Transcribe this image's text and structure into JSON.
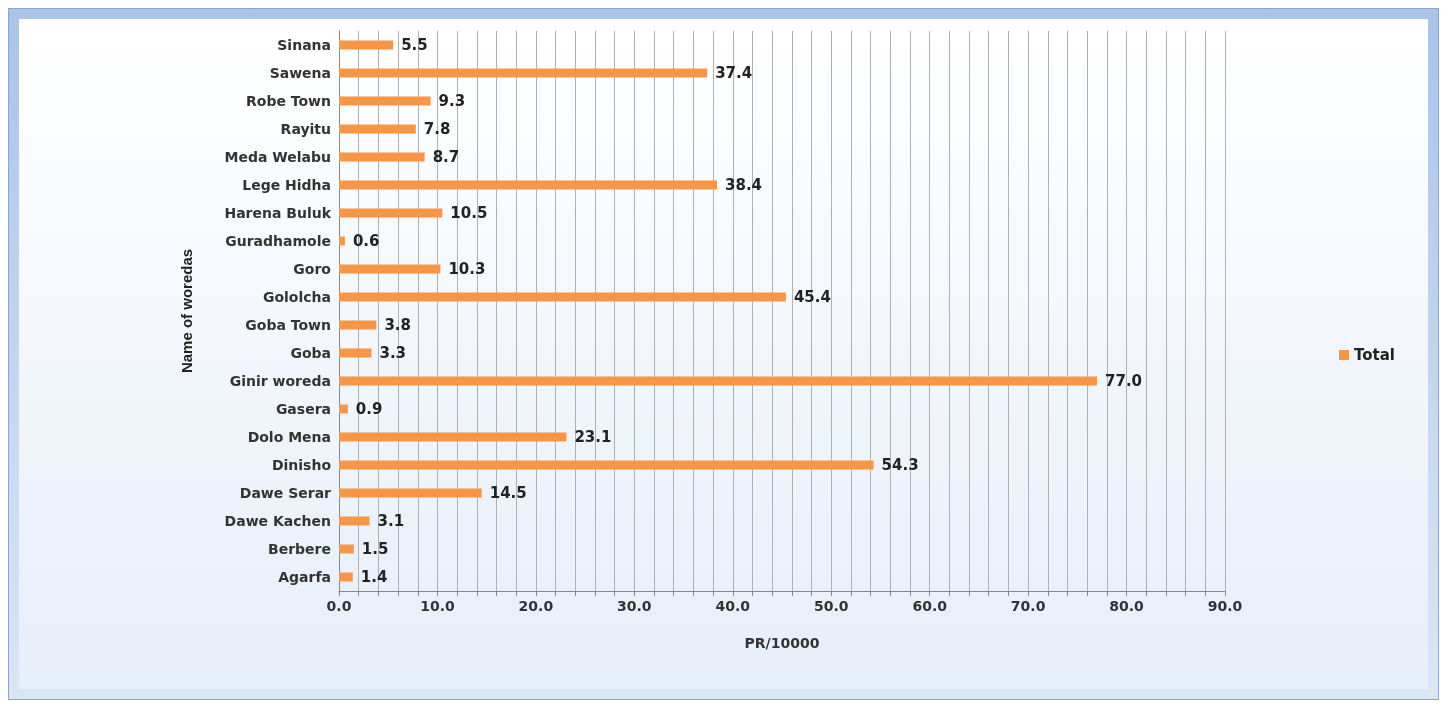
{
  "chart_data": {
    "type": "bar",
    "orientation": "horizontal",
    "xlabel": "PR/10000",
    "ylabel": "Name of woredas",
    "categories": [
      "Sinana",
      "Sawena",
      "Robe Town",
      "Rayitu",
      "Meda Welabu",
      "Lege Hidha",
      "Harena Buluk",
      "Guradhamole",
      "Goro",
      "Gololcha",
      "Goba Town",
      "Goba",
      "Ginir woreda",
      "Gasera",
      "Dolo Mena",
      "Dinisho",
      "Dawe Serar",
      "Dawe Kachen",
      "Berbere",
      "Agarfa"
    ],
    "series": [
      {
        "name": "Total",
        "color": "#f79646",
        "values": [
          5.5,
          37.4,
          9.3,
          7.8,
          8.7,
          38.4,
          10.5,
          0.6,
          10.3,
          45.4,
          3.8,
          3.3,
          77.0,
          0.9,
          23.1,
          54.3,
          14.5,
          3.1,
          1.5,
          1.4
        ],
        "value_labels": [
          "5.5",
          "37.4",
          "9.3",
          "7.8",
          "8.7",
          "38.4",
          "10.5",
          "0.6",
          "10.3",
          "45.4",
          "3.8",
          "3.3",
          "77.0",
          "0.9",
          "23.1",
          "54.3",
          "14.5",
          "3.1",
          "1.5",
          "1.4"
        ]
      }
    ],
    "xlim": [
      0,
      90
    ],
    "xticks": [
      {
        "value": 0,
        "label": "0.0"
      },
      {
        "value": 2,
        "label": null
      },
      {
        "value": 4,
        "label": null
      },
      {
        "value": 6,
        "label": null
      },
      {
        "value": 8,
        "label": null
      },
      {
        "value": 10,
        "label": "10.0"
      },
      {
        "value": 12,
        "label": null
      },
      {
        "value": 14,
        "label": null
      },
      {
        "value": 16,
        "label": null
      },
      {
        "value": 18,
        "label": null
      },
      {
        "value": 20,
        "label": "20.0"
      },
      {
        "value": 22,
        "label": null
      },
      {
        "value": 24,
        "label": null
      },
      {
        "value": 26,
        "label": null
      },
      {
        "value": 28,
        "label": null
      },
      {
        "value": 30,
        "label": "30.0"
      },
      {
        "value": 32,
        "label": null
      },
      {
        "value": 34,
        "label": null
      },
      {
        "value": 36,
        "label": null
      },
      {
        "value": 38,
        "label": null
      },
      {
        "value": 40,
        "label": "40.0"
      },
      {
        "value": 42,
        "label": null
      },
      {
        "value": 44,
        "label": null
      },
      {
        "value": 46,
        "label": null
      },
      {
        "value": 48,
        "label": null
      },
      {
        "value": 50,
        "label": "50.0"
      },
      {
        "value": 52,
        "label": null
      },
      {
        "value": 54,
        "label": null
      },
      {
        "value": 56,
        "label": null
      },
      {
        "value": 58,
        "label": null
      },
      {
        "value": 60,
        "label": "60.0"
      },
      {
        "value": 62,
        "label": null
      },
      {
        "value": 64,
        "label": null
      },
      {
        "value": 66,
        "label": null
      },
      {
        "value": 68,
        "label": null
      },
      {
        "value": 70,
        "label": "70.0"
      },
      {
        "value": 72,
        "label": null
      },
      {
        "value": 74,
        "label": null
      },
      {
        "value": 76,
        "label": null
      },
      {
        "value": 78,
        "label": null
      },
      {
        "value": 80,
        "label": "80.0"
      },
      {
        "value": 82,
        "label": null
      },
      {
        "value": 84,
        "label": null
      },
      {
        "value": 86,
        "label": null
      },
      {
        "value": 88,
        "label": null
      },
      {
        "value": 90,
        "label": "90.0"
      }
    ],
    "grid": "x",
    "legend": "right"
  }
}
